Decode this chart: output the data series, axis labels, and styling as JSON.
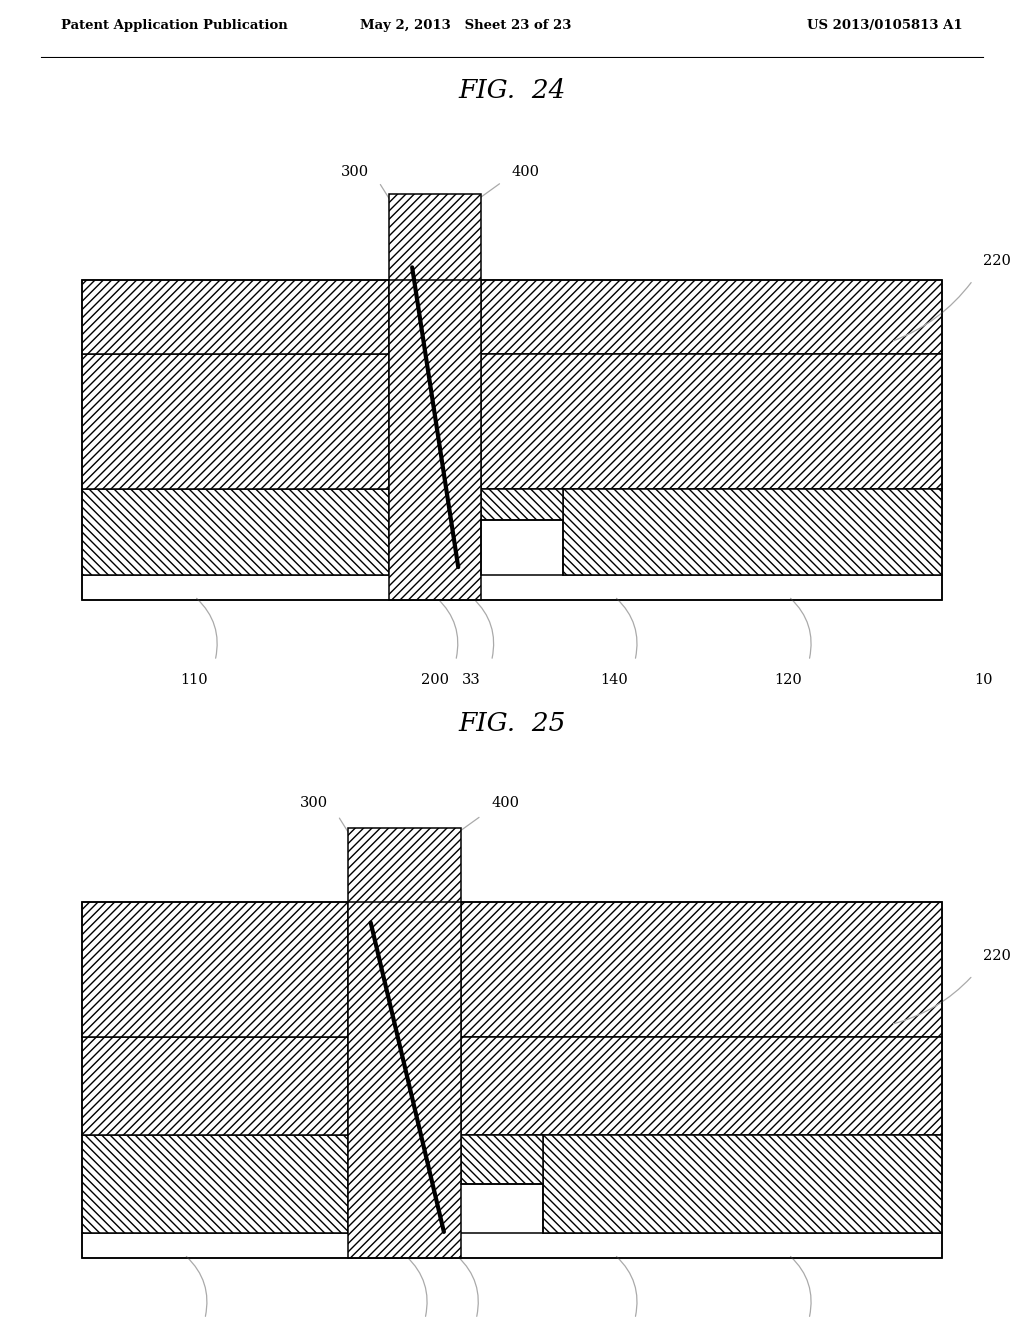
{
  "header_left": "Patent Application Publication",
  "header_center": "May 2, 2013   Sheet 23 of 23",
  "header_right": "US 2013/0105813 A1",
  "bg_color": "#ffffff"
}
